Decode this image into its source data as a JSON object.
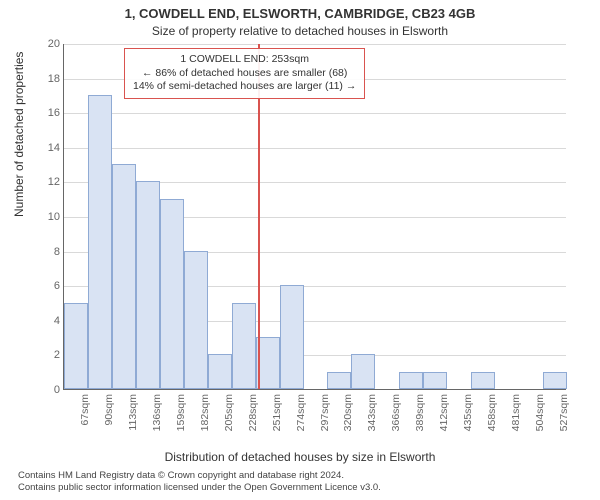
{
  "title": "1, COWDELL END, ELSWORTH, CAMBRIDGE, CB23 4GB",
  "subtitle": "Size of property relative to detached houses in Elsworth",
  "ylabel": "Number of detached properties",
  "xlabel": "Distribution of detached houses by size in Elsworth",
  "footer_line1": "Contains HM Land Registry data © Crown copyright and database right 2024.",
  "footer_line2": "Contains public sector information licensed under the Open Government Licence v3.0.",
  "annotation": {
    "line1": "1 COWDELL END: 253sqm",
    "line2": "← 86% of detached houses are smaller (68)",
    "line3": "14% of semi-detached houses are larger (11) →"
  },
  "chart": {
    "type": "bar",
    "ylim": [
      0,
      20
    ],
    "yticks": [
      0,
      2,
      4,
      6,
      8,
      10,
      12,
      14,
      16,
      18,
      20
    ],
    "marker_x_sqm": 253,
    "x_min_sqm": 67,
    "x_step_sqm": 23,
    "x_categories": [
      "67sqm",
      "90sqm",
      "113sqm",
      "136sqm",
      "159sqm",
      "182sqm",
      "205sqm",
      "228sqm",
      "251sqm",
      "274sqm",
      "297sqm",
      "320sqm",
      "343sqm",
      "366sqm",
      "389sqm",
      "412sqm",
      "435sqm",
      "458sqm",
      "481sqm",
      "504sqm",
      "527sqm"
    ],
    "values": [
      5,
      17,
      13,
      12,
      11,
      8,
      2,
      5,
      3,
      6,
      0,
      1,
      2,
      0,
      1,
      1,
      0,
      1,
      0,
      0,
      1
    ],
    "bar_fill": "#d9e3f3",
    "bar_stroke": "#8faad4",
    "grid_color": "#d9d9d9",
    "axis_color": "#666666",
    "background": "#ffffff",
    "marker_color": "#d9534f",
    "title_fontsize": 13,
    "label_fontsize": 12,
    "tick_fontsize": 11
  }
}
